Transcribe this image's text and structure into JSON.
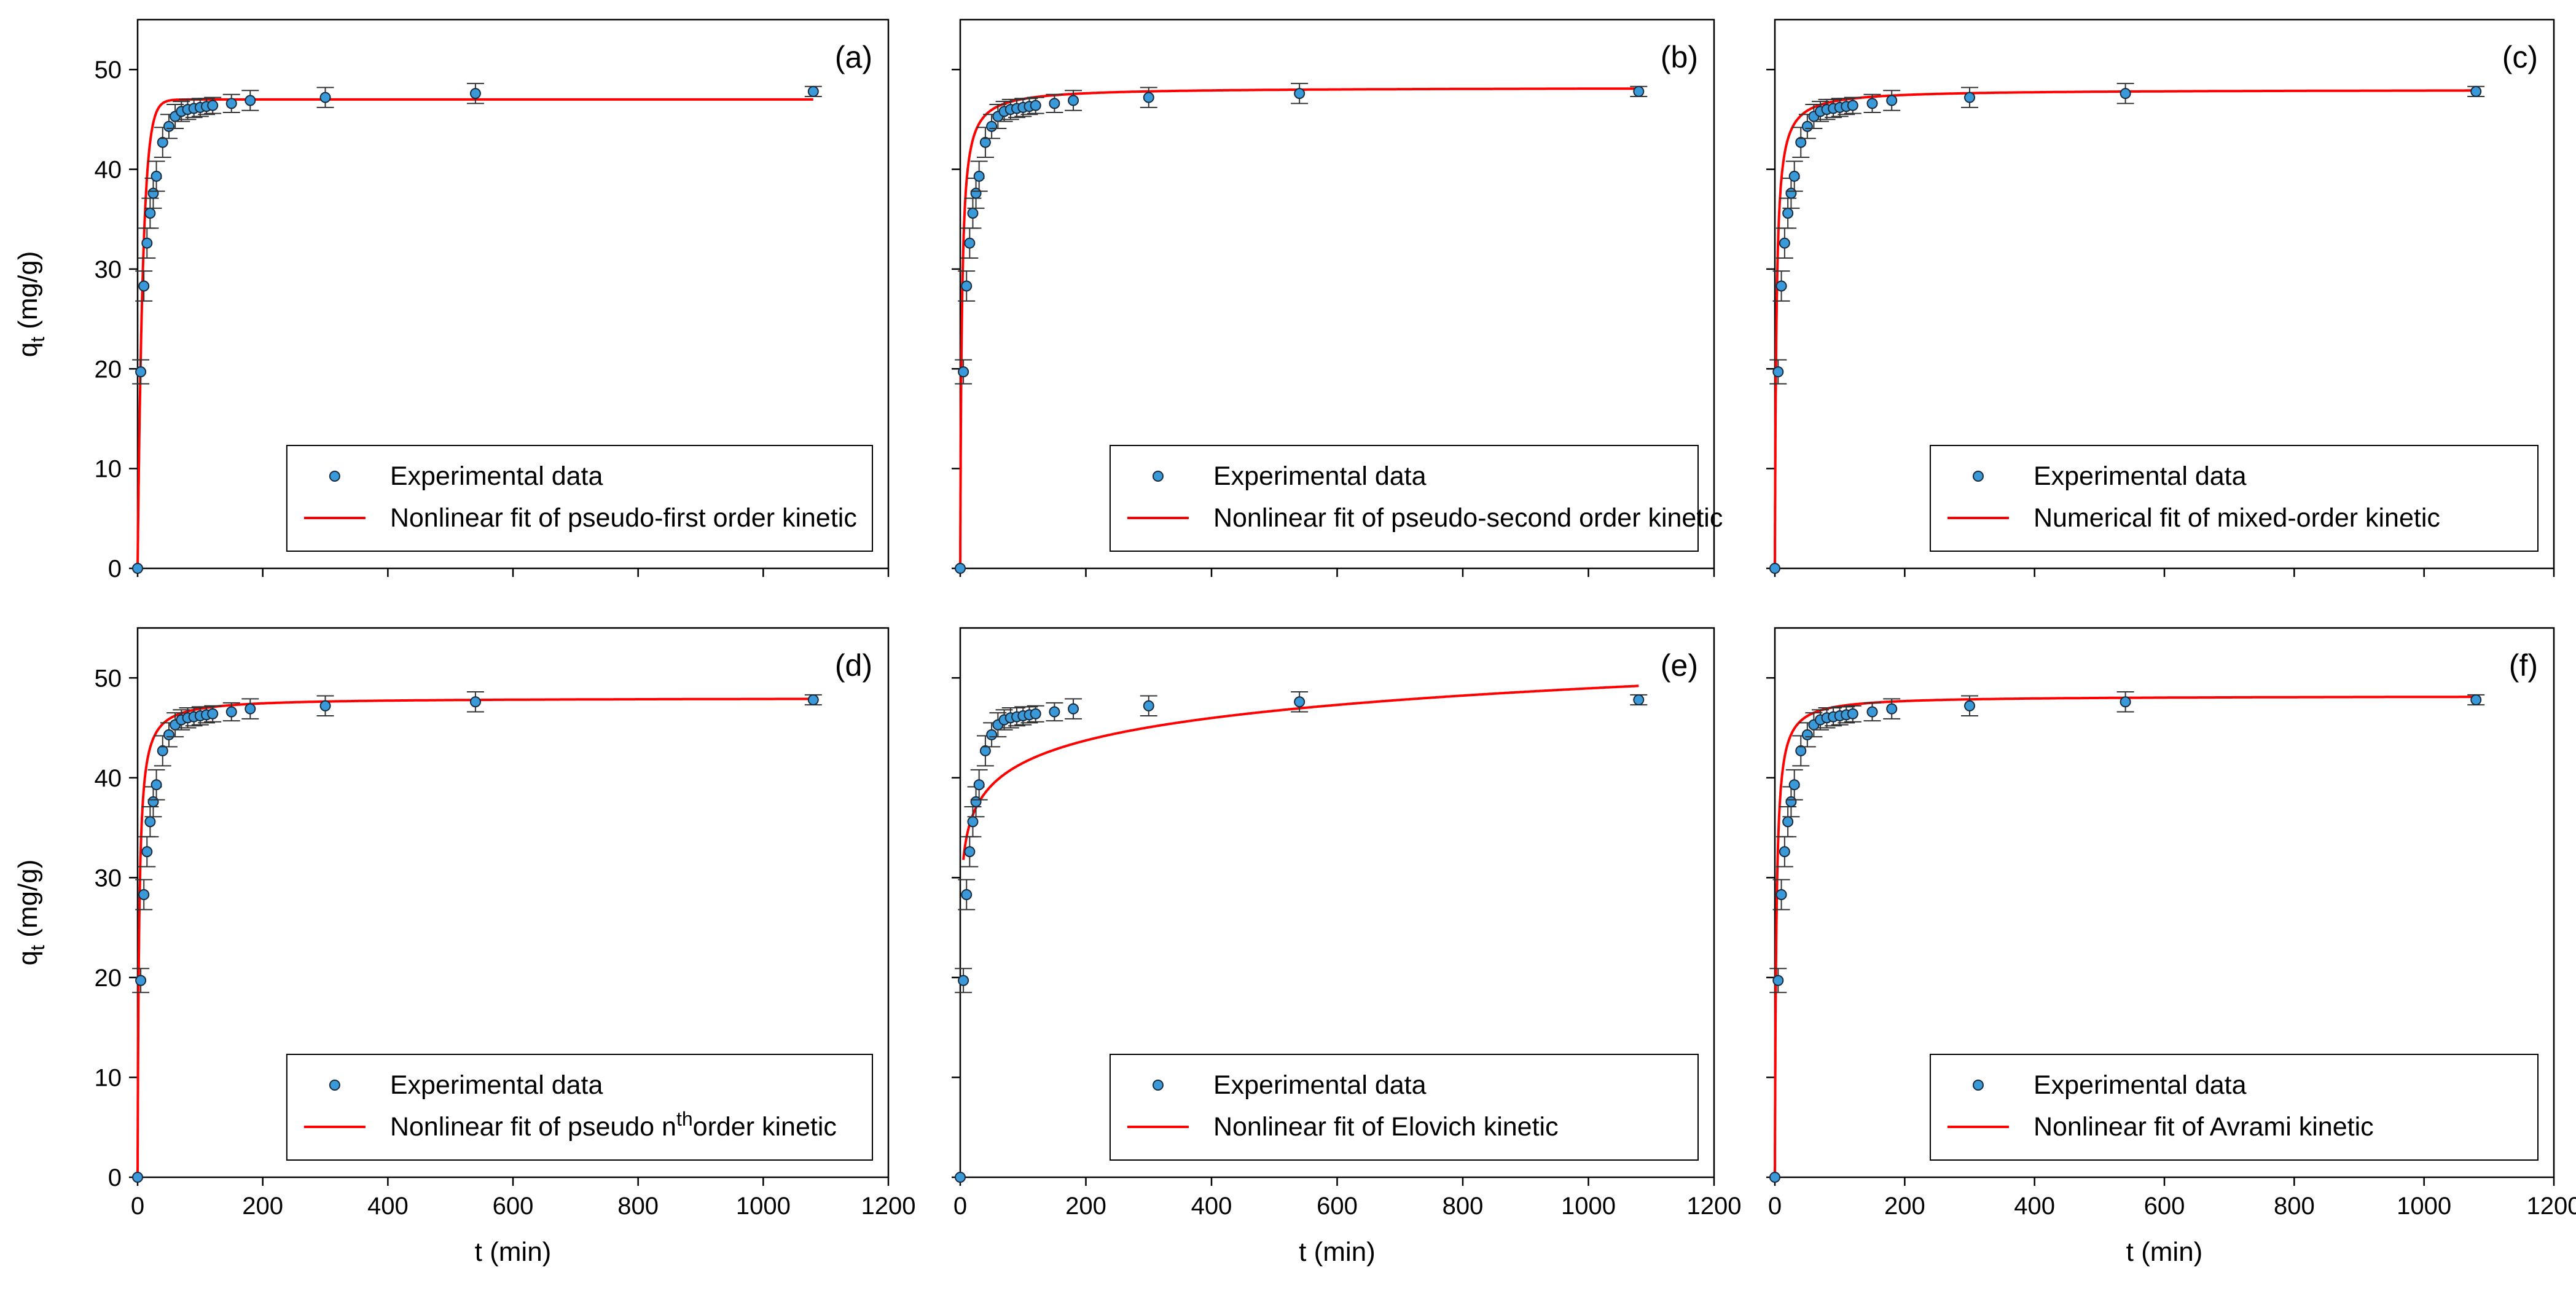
{
  "figure": {
    "shared_y_title": {
      "main": "q",
      "sub": "t",
      "unit": " (mg/g)"
    },
    "shared_x_title": "t (min)"
  },
  "chart_data": [
    {
      "type": "scatter",
      "panel_label": "(a)",
      "xlabel": "",
      "ylabel": "q_t (mg/g)",
      "xlim": [
        0,
        1200
      ],
      "ylim": [
        0,
        55
      ],
      "xticks": [
        0,
        200,
        400,
        600,
        800,
        1000,
        1200
      ],
      "yticks": [
        0,
        10,
        20,
        30,
        40,
        50
      ],
      "show_x_tick_labels": false,
      "show_y_tick_labels": true,
      "series": [
        {
          "name": "Experimental data",
          "kind": "points_with_error_bars",
          "x": [
            0,
            5,
            10,
            15,
            20,
            25,
            30,
            40,
            50,
            60,
            70,
            80,
            90,
            100,
            110,
            120,
            150,
            180,
            300,
            540,
            1080
          ],
          "y": [
            0,
            19.7,
            28.3,
            32.6,
            35.6,
            37.6,
            39.3,
            42.7,
            44.3,
            45.3,
            45.8,
            46.0,
            46.1,
            46.2,
            46.3,
            46.4,
            46.6,
            46.9,
            47.2,
            47.6,
            47.8
          ],
          "err": [
            0,
            1.2,
            1.5,
            1.5,
            1.5,
            1.5,
            1.5,
            1.5,
            1.2,
            1.2,
            1.0,
            1.0,
            0.9,
            0.9,
            0.8,
            0.8,
            0.9,
            1.0,
            1.0,
            1.0,
            0.5
          ]
        },
        {
          "name": "Nonlinear fit of pseudo-first order kinetic",
          "kind": "fit_line",
          "color": "#ff0000",
          "model": {
            "kind": "pfo",
            "qe": 47.0,
            "k": 0.12
          },
          "x_max": 1080
        }
      ],
      "legend": {
        "placement": "bottom-right",
        "entries": [
          "Experimental data",
          "Nonlinear fit of pseudo-first order kinetic"
        ]
      }
    },
    {
      "type": "scatter",
      "panel_label": "(b)",
      "xlabel": "",
      "ylabel": "",
      "xlim": [
        0,
        1200
      ],
      "ylim": [
        0,
        55
      ],
      "xticks": [
        0,
        200,
        400,
        600,
        800,
        1000,
        1200
      ],
      "yticks": [
        0,
        10,
        20,
        30,
        40,
        50
      ],
      "show_x_tick_labels": false,
      "show_y_tick_labels": false,
      "series": [
        {
          "name": "Experimental data",
          "kind": "points_with_error_bars",
          "x": [
            0,
            5,
            10,
            15,
            20,
            25,
            30,
            40,
            50,
            60,
            70,
            80,
            90,
            100,
            110,
            120,
            150,
            180,
            300,
            540,
            1080
          ],
          "y": [
            0,
            19.7,
            28.3,
            32.6,
            35.6,
            37.6,
            39.3,
            42.7,
            44.3,
            45.3,
            45.8,
            46.0,
            46.1,
            46.2,
            46.3,
            46.4,
            46.6,
            46.9,
            47.2,
            47.6,
            47.8
          ],
          "err": [
            0,
            1.2,
            1.5,
            1.5,
            1.5,
            1.5,
            1.5,
            1.5,
            1.2,
            1.2,
            1.0,
            1.0,
            0.9,
            0.9,
            0.8,
            0.8,
            0.9,
            1.0,
            1.0,
            1.0,
            0.5
          ]
        },
        {
          "name": "Nonlinear fit of pseudo-second order kinetic",
          "kind": "fit_line",
          "color": "#ff0000",
          "model": {
            "kind": "pso",
            "qe": 48.2,
            "k": 0.0085
          },
          "x_max": 1080
        }
      ],
      "legend": {
        "placement": "bottom-right",
        "entries": [
          "Experimental data",
          "Nonlinear fit of pseudo-second order kinetic"
        ]
      }
    },
    {
      "type": "scatter",
      "panel_label": "(c)",
      "xlabel": "",
      "ylabel": "",
      "xlim": [
        0,
        1200
      ],
      "ylim": [
        0,
        55
      ],
      "xticks": [
        0,
        200,
        400,
        600,
        800,
        1000,
        1200
      ],
      "yticks": [
        0,
        10,
        20,
        30,
        40,
        50
      ],
      "show_x_tick_labels": false,
      "show_y_tick_labels": false,
      "series": [
        {
          "name": "Experimental data",
          "kind": "points_with_error_bars",
          "x": [
            0,
            5,
            10,
            15,
            20,
            25,
            30,
            40,
            50,
            60,
            70,
            80,
            90,
            100,
            110,
            120,
            150,
            180,
            300,
            540,
            1080
          ],
          "y": [
            0,
            19.7,
            28.3,
            32.6,
            35.6,
            37.6,
            39.3,
            42.7,
            44.3,
            45.3,
            45.8,
            46.0,
            46.1,
            46.2,
            46.3,
            46.4,
            46.6,
            46.9,
            47.2,
            47.6,
            47.8
          ],
          "err": [
            0,
            1.2,
            1.5,
            1.5,
            1.5,
            1.5,
            1.5,
            1.5,
            1.2,
            1.2,
            1.0,
            1.0,
            0.9,
            0.9,
            0.8,
            0.8,
            0.9,
            1.0,
            1.0,
            1.0,
            0.5
          ]
        },
        {
          "name": "Numerical fit of mixed-order kinetic",
          "kind": "fit_line",
          "color": "#ff0000",
          "model": {
            "kind": "pso",
            "qe": 48.0,
            "k": 0.009
          },
          "x_max": 1080
        }
      ],
      "legend": {
        "placement": "bottom-right",
        "entries": [
          "Experimental data",
          "Numerical fit of mixed-order kinetic"
        ]
      }
    },
    {
      "type": "scatter",
      "panel_label": "(d)",
      "xlabel": "t (min)",
      "ylabel": "q_t (mg/g)",
      "xlim": [
        0,
        1200
      ],
      "ylim": [
        0,
        55
      ],
      "xticks": [
        0,
        200,
        400,
        600,
        800,
        1000,
        1200
      ],
      "yticks": [
        0,
        10,
        20,
        30,
        40,
        50
      ],
      "show_x_tick_labels": true,
      "show_y_tick_labels": true,
      "series": [
        {
          "name": "Experimental data",
          "kind": "points_with_error_bars",
          "x": [
            0,
            5,
            10,
            15,
            20,
            25,
            30,
            40,
            50,
            60,
            70,
            80,
            90,
            100,
            110,
            120,
            150,
            180,
            300,
            540,
            1080
          ],
          "y": [
            0,
            19.7,
            28.3,
            32.6,
            35.6,
            37.6,
            39.3,
            42.7,
            44.3,
            45.3,
            45.8,
            46.0,
            46.1,
            46.2,
            46.3,
            46.4,
            46.6,
            46.9,
            47.2,
            47.6,
            47.8
          ],
          "err": [
            0,
            1.2,
            1.5,
            1.5,
            1.5,
            1.5,
            1.5,
            1.5,
            1.2,
            1.2,
            1.0,
            1.0,
            0.9,
            0.9,
            0.8,
            0.8,
            0.9,
            1.0,
            1.0,
            1.0,
            0.5
          ]
        },
        {
          "name": "Nonlinear fit of pseudo nthorder kinetic",
          "kind": "fit_line",
          "color": "#ff0000",
          "model": {
            "kind": "pso",
            "qe": 48.0,
            "k": 0.009
          },
          "x_max": 1080
        }
      ],
      "legend": {
        "placement": "bottom-right",
        "entries": [
          "Experimental data",
          "Nonlinear fit of pseudo nthorder kinetic"
        ],
        "rich_second_entry": {
          "before": "Nonlinear fit of pseudo n",
          "sup": "th",
          "after": "order kinetic"
        }
      }
    },
    {
      "type": "scatter",
      "panel_label": "(e)",
      "xlabel": "t (min)",
      "ylabel": "",
      "xlim": [
        0,
        1200
      ],
      "ylim": [
        0,
        55
      ],
      "xticks": [
        0,
        200,
        400,
        600,
        800,
        1000,
        1200
      ],
      "yticks": [
        0,
        10,
        20,
        30,
        40,
        50
      ],
      "show_x_tick_labels": true,
      "show_y_tick_labels": false,
      "series": [
        {
          "name": "Experimental data",
          "kind": "points_with_error_bars",
          "x": [
            0,
            5,
            10,
            15,
            20,
            25,
            30,
            40,
            50,
            60,
            70,
            80,
            90,
            100,
            110,
            120,
            150,
            180,
            300,
            540,
            1080
          ],
          "y": [
            0,
            19.7,
            28.3,
            32.6,
            35.6,
            37.6,
            39.3,
            42.7,
            44.3,
            45.3,
            45.8,
            46.0,
            46.1,
            46.2,
            46.3,
            46.4,
            46.6,
            46.9,
            47.2,
            47.6,
            47.8
          ],
          "err": [
            0,
            1.2,
            1.5,
            1.5,
            1.5,
            1.5,
            1.5,
            1.5,
            1.2,
            1.2,
            1.0,
            1.0,
            0.9,
            0.9,
            0.8,
            0.8,
            0.9,
            1.0,
            1.0,
            1.0,
            0.5
          ]
        },
        {
          "name": "Nonlinear fit of Elovich kinetic",
          "kind": "fit_line",
          "color": "#ff0000",
          "model": {
            "kind": "elovich",
            "a": 26.57,
            "b": 3.24
          },
          "x_min": 5,
          "x_max": 1080
        }
      ],
      "legend": {
        "placement": "bottom-right",
        "entries": [
          "Experimental data",
          "Nonlinear fit of Elovich kinetic"
        ]
      }
    },
    {
      "type": "scatter",
      "panel_label": "(f)",
      "xlabel": "t (min)",
      "ylabel": "",
      "xlim": [
        0,
        1200
      ],
      "ylim": [
        0,
        55
      ],
      "xticks": [
        0,
        200,
        400,
        600,
        800,
        1000,
        1200
      ],
      "yticks": [
        0,
        10,
        20,
        30,
        40,
        50
      ],
      "show_x_tick_labels": true,
      "show_y_tick_labels": false,
      "series": [
        {
          "name": "Experimental data",
          "kind": "points_with_error_bars",
          "x": [
            0,
            5,
            10,
            15,
            20,
            25,
            30,
            40,
            50,
            60,
            70,
            80,
            90,
            100,
            110,
            120,
            150,
            180,
            300,
            540,
            1080
          ],
          "y": [
            0,
            19.7,
            28.3,
            32.6,
            35.6,
            37.6,
            39.3,
            42.7,
            44.3,
            45.3,
            45.8,
            46.0,
            46.1,
            46.2,
            46.3,
            46.4,
            46.6,
            46.9,
            47.2,
            47.6,
            47.8
          ],
          "err": [
            0,
            1.2,
            1.5,
            1.5,
            1.5,
            1.5,
            1.5,
            1.5,
            1.2,
            1.2,
            1.0,
            1.0,
            0.9,
            0.9,
            0.8,
            0.8,
            0.9,
            1.0,
            1.0,
            1.0,
            0.5
          ]
        },
        {
          "name": "Nonlinear fit of Avrami kinetic",
          "kind": "fit_line",
          "color": "#ff0000",
          "model": {
            "kind": "pso",
            "qe": 48.2,
            "k": 0.0095
          },
          "x_max": 1080
        }
      ],
      "legend": {
        "placement": "bottom-right",
        "entries": [
          "Experimental data",
          "Nonlinear fit of Avrami kinetic"
        ]
      }
    }
  ],
  "colors": {
    "marker_fill": "#3a9ad9",
    "marker_edge": "#1a2a3a",
    "error_bar": "#333333",
    "fit_line": "#ff0000",
    "axes": "#000000"
  }
}
